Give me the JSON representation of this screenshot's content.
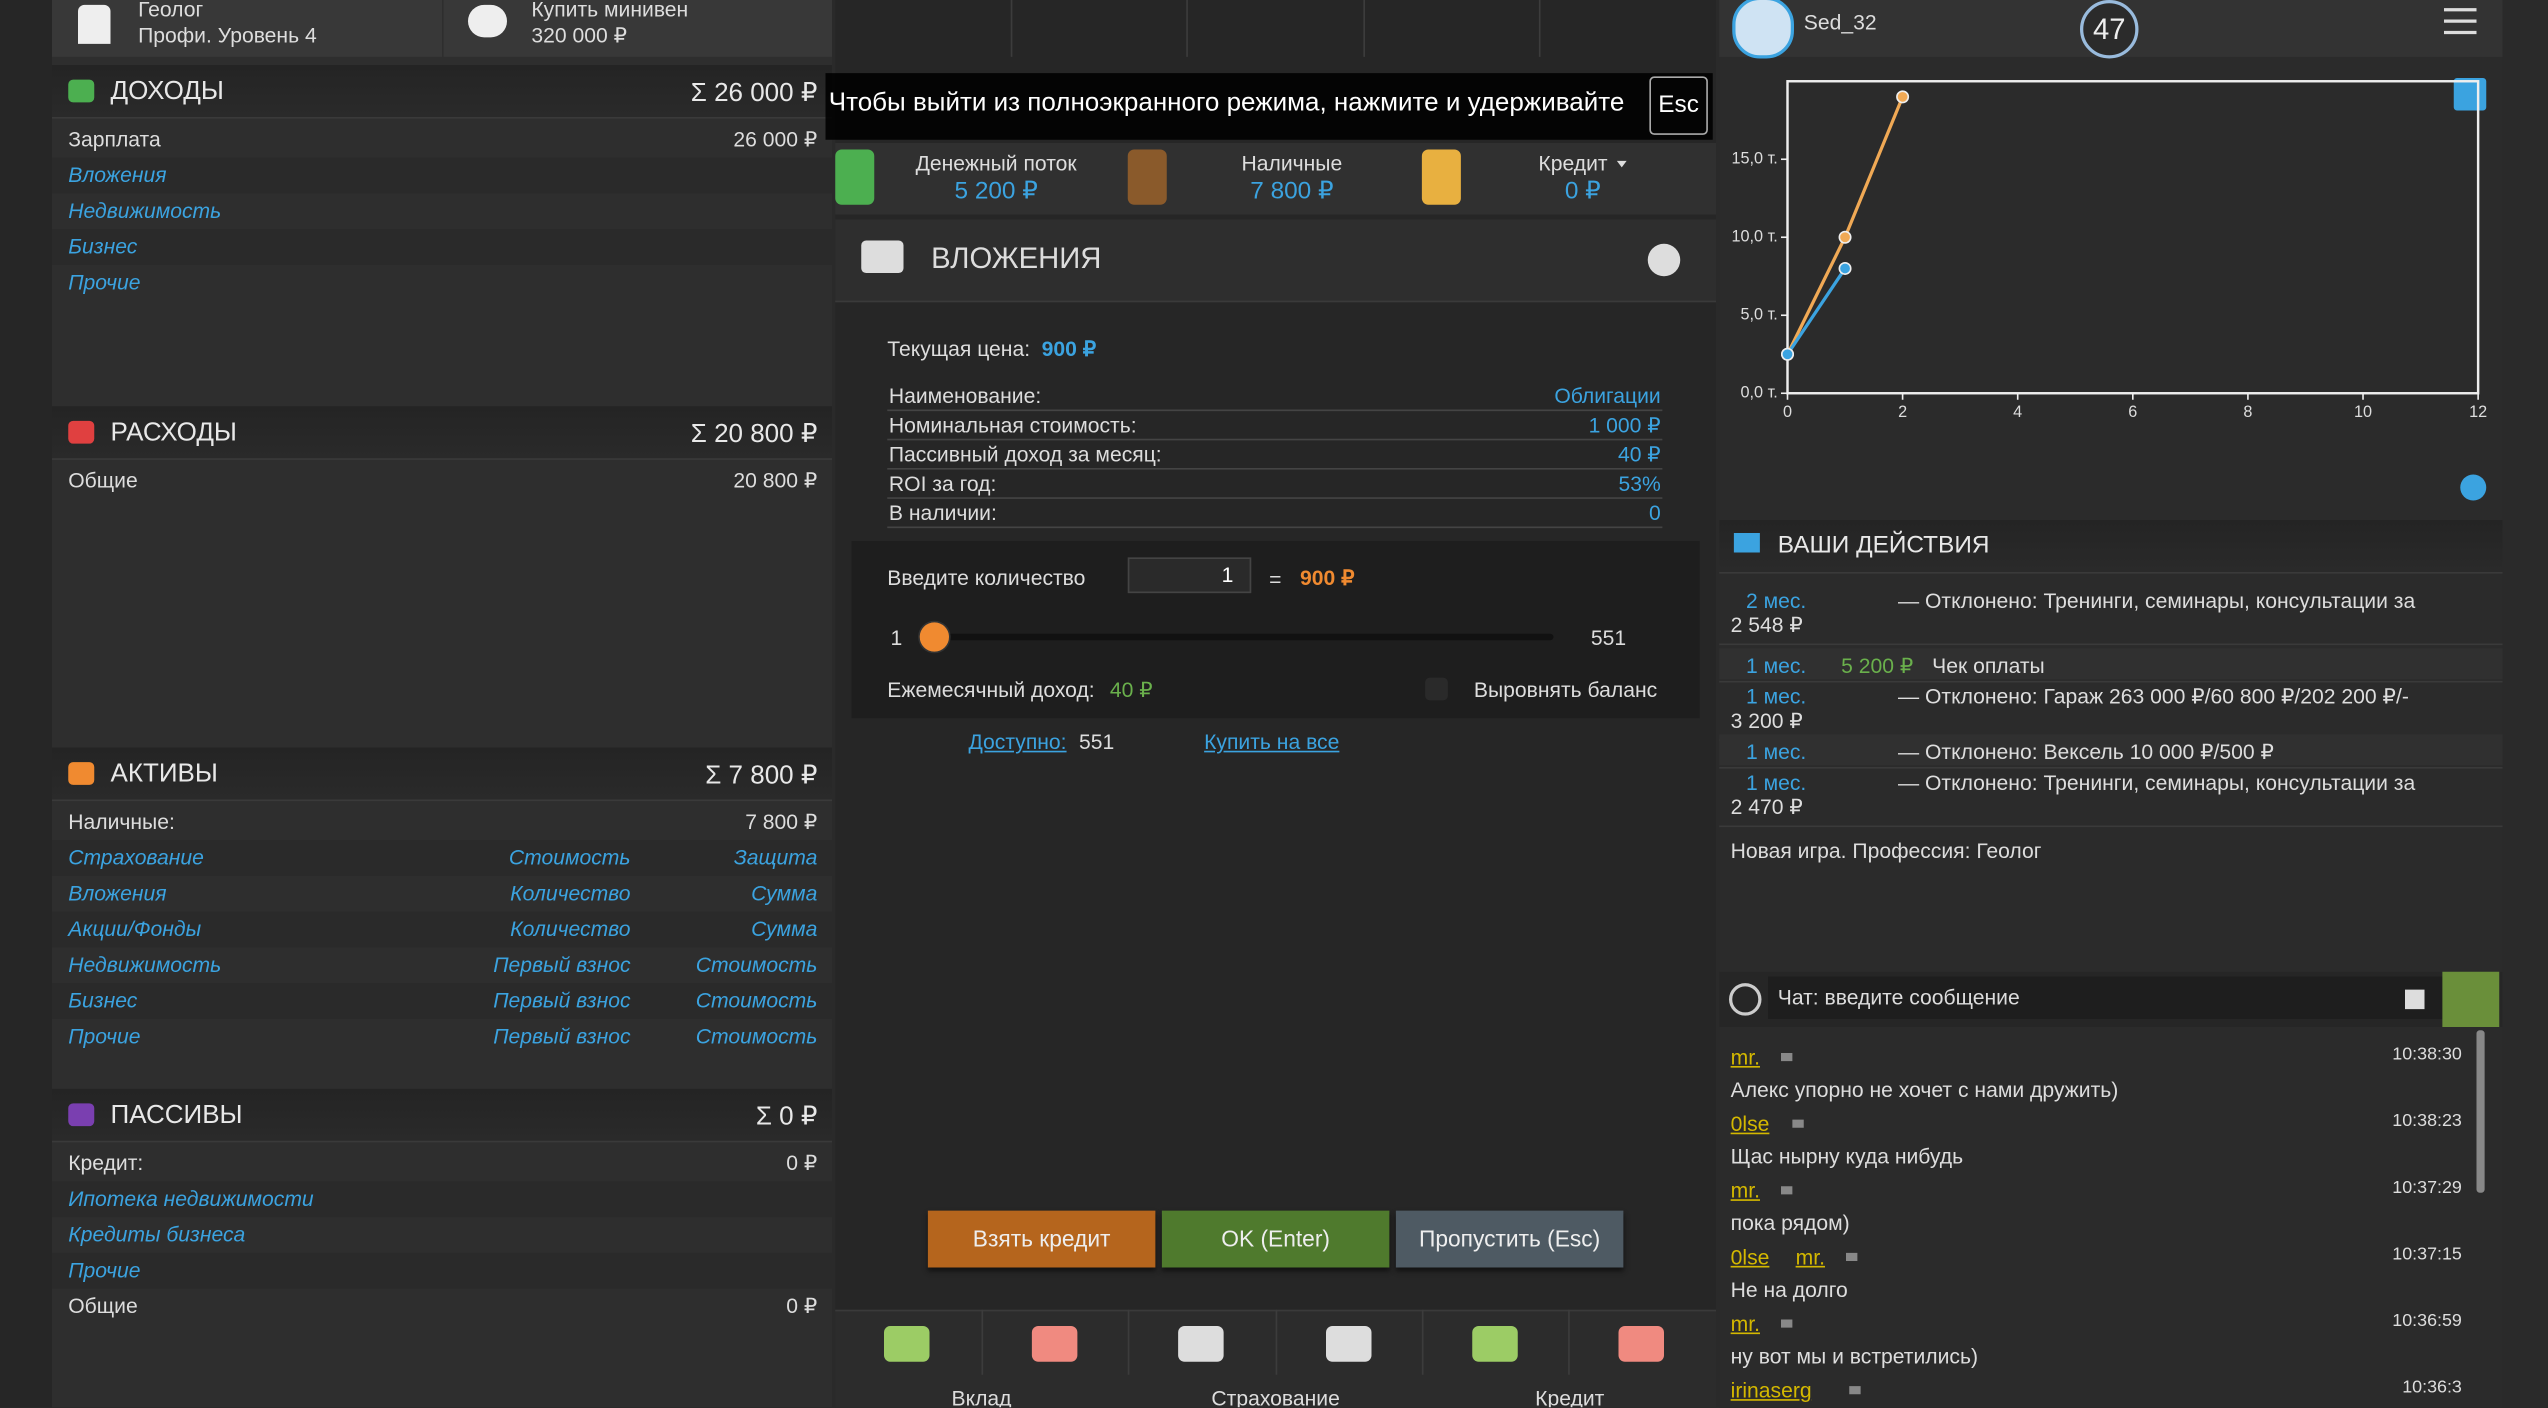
{
  "top_bar": {
    "profession": "Геолог",
    "level": "Профи. Уровень 4",
    "goal": "Купить минивен",
    "goal_price": "320 000 ₽"
  },
  "income": {
    "title": "ДОХОДЫ",
    "total": "Σ 26 000 ₽",
    "rows": [
      {
        "cells": [
          "Зарплата",
          "26 000 ₽"
        ]
      },
      {
        "cells": [
          "Вложения"
        ],
        "link": true
      },
      {
        "cells": [
          "Недвижимость"
        ],
        "link": true
      },
      {
        "cells": [
          "Бизнес"
        ],
        "link": true
      },
      {
        "cells": [
          "Прочие"
        ],
        "link": true
      }
    ]
  },
  "expenses": {
    "title": "РАСХОДЫ",
    "total": "Σ 20 800 ₽",
    "rows": [
      {
        "cells": [
          "Общие",
          "20 800 ₽"
        ]
      }
    ]
  },
  "assets": {
    "title": "АКТИВЫ",
    "total": "Σ 7 800 ₽",
    "rows": [
      {
        "cells": [
          "Наличные:",
          "7 800 ₽"
        ]
      },
      {
        "cells": [
          "Страхование",
          "Стоимость",
          "Защита"
        ],
        "link": true
      },
      {
        "cells": [
          "Вложения",
          "Количество",
          "Сумма"
        ],
        "link": true
      },
      {
        "cells": [
          "Акции/Фонды",
          "Количество",
          "Сумма"
        ],
        "link": true
      },
      {
        "cells": [
          "Недвижимость",
          "Первый взнос",
          "Стоимость"
        ],
        "link": true
      },
      {
        "cells": [
          "Бизнес",
          "Первый взнос",
          "Стоимость"
        ],
        "link": true
      },
      {
        "cells": [
          "Прочие",
          "Первый взнос",
          "Стоимость"
        ],
        "link": true
      }
    ]
  },
  "liabilities": {
    "title": "ПАССИВЫ",
    "total": "Σ 0 ₽",
    "rows": [
      {
        "cells": [
          "Кредит:",
          "0 ₽"
        ]
      },
      {
        "cells": [
          "Ипотека недвижимости"
        ],
        "link": true
      },
      {
        "cells": [
          "Кредиты бизнеса"
        ],
        "link": true
      },
      {
        "cells": [
          "Прочие"
        ],
        "link": true
      },
      {
        "cells": [
          "Общие",
          "0 ₽"
        ]
      }
    ]
  },
  "fullscreen_notice": {
    "text": "Чтобы выйти из полноэкранного режима, нажмите и удерживайте",
    "key": "Esc"
  },
  "stats": [
    {
      "label": "Денежный поток",
      "value": "5 200 ₽"
    },
    {
      "label": "Наличные",
      "value": "7 800 ₽"
    },
    {
      "label": "Кредит",
      "value": "0 ₽"
    }
  ],
  "modal": {
    "title": "ВЛОЖЕНИЯ",
    "price_label": "Текущая цена:",
    "price": "900 ₽",
    "details": [
      [
        "Наименование:",
        "Облигации"
      ],
      [
        "Номинальная стоимость:",
        "1 000 ₽"
      ],
      [
        "Пассивный доход за месяц:",
        "40 ₽"
      ],
      [
        "ROI за год:",
        "53%"
      ],
      [
        "В наличии:",
        "0"
      ]
    ],
    "quantity_label": "Введите количество",
    "quantity": "1",
    "equals": "=",
    "total": "900 ₽",
    "slider_min": "1",
    "slider_max": "551",
    "monthly_label": "Ежемесячный доход:",
    "monthly": "40 ₽",
    "balance_label": "Выровнять баланс",
    "available_label": "Доступно:",
    "available": "551",
    "buy_all": "Купить на все",
    "buttons": [
      "Взять кредит",
      "OK (Enter)",
      "Пропустить (Esc)"
    ]
  },
  "toolbar": [
    "Вклад",
    "Страхование",
    "Кредит"
  ],
  "user": {
    "name": "Sed_32",
    "badge": "47"
  },
  "chart": {
    "type": "line",
    "xlim": [
      0,
      12
    ],
    "xticks": [
      0,
      2,
      4,
      6,
      8,
      10,
      12
    ],
    "ylim": [
      0,
      20
    ],
    "yticks": [
      {
        "value": 0,
        "label": "0,0 т."
      },
      {
        "value": 5,
        "label": "5,0 т."
      },
      {
        "value": 10,
        "label": "10,0 т."
      },
      {
        "value": 15,
        "label": "15,0 т."
      }
    ],
    "series": [
      {
        "color": "#f0a955",
        "x": [
          0,
          1,
          2
        ],
        "values": [
          2.5,
          10,
          19
        ]
      },
      {
        "color": "#3ba3e0",
        "x": [
          0,
          1
        ],
        "values": [
          2.5,
          8
        ]
      }
    ]
  },
  "actions": {
    "title": "ВАШИ ДЕЙСТВИЯ",
    "rows": [
      {
        "time": "2 мес.",
        "text": "— Отклонено: Тренинги, семинары, консультации за",
        "more": "2 548 ₽"
      },
      {
        "time": "1 мес.",
        "amount": "5 200 ₽",
        "text": "Чек оплаты"
      },
      {
        "time": "1 мес.",
        "text": "— Отклонено: Гараж 263 000 ₽/60 800 ₽/202 200 ₽/-",
        "more": "3 200 ₽"
      },
      {
        "time": "1 мес.",
        "text": "— Отклонено: Вексель 10 000 ₽/500 ₽"
      },
      {
        "time": "1 мес.",
        "text": "— Отклонено: Тренинги, семинары, консультации за",
        "more": "2 470 ₽"
      }
    ],
    "new_game": "Новая игра. Профессия: Геолог"
  },
  "chat": {
    "placeholder": "Чат: введите сообщение",
    "messages": [
      {
        "users": [
          "mr."
        ],
        "time": "10:38:30",
        "text": "Алекс упорно не хочет с нами дружить)"
      },
      {
        "users": [
          "0lse"
        ],
        "time": "10:38:23",
        "text": "Щас нырну куда нибудь"
      },
      {
        "users": [
          "mr."
        ],
        "time": "10:37:29",
        "text": "пока рядом)"
      },
      {
        "users": [
          "0lse",
          "mr."
        ],
        "time": "10:37:15",
        "text": "Не на долго"
      },
      {
        "users": [
          "mr."
        ],
        "time": "10:36:59",
        "text": "ну вот мы и встретились)"
      },
      {
        "users": [
          "irinaserg"
        ],
        "time": "10:36:3"
      }
    ]
  }
}
